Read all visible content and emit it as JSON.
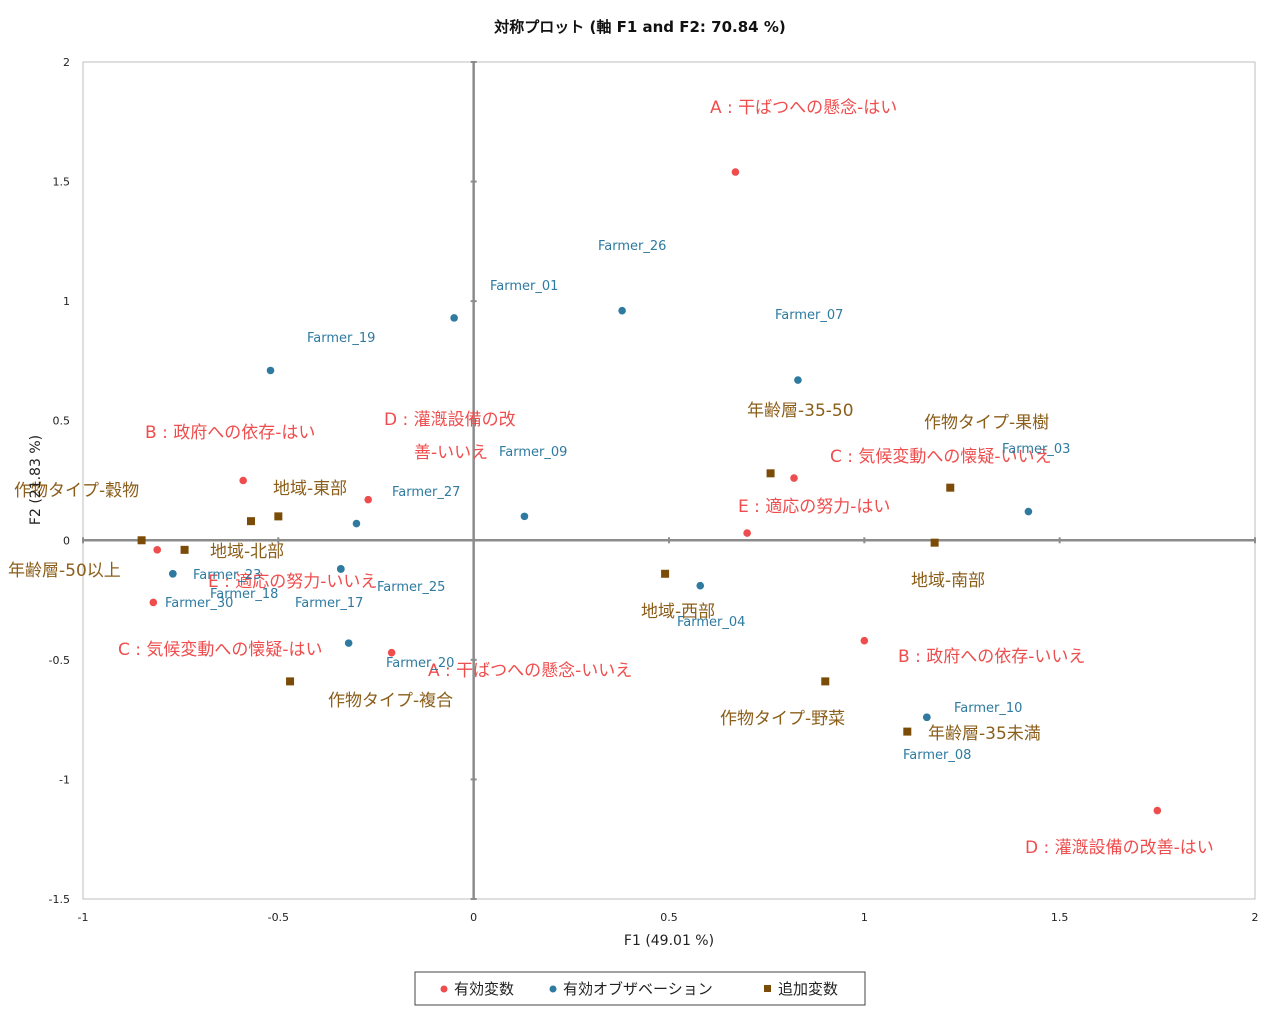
{
  "chart_data": {
    "type": "scatter",
    "title": "対称プロット (軸 F1 and F2: 70.84 %)",
    "xlabel": "F1 (49.01 %)",
    "ylabel": "F2 (21.83 %)",
    "xlim": [
      -1,
      2
    ],
    "ylim": [
      -1.5,
      2
    ],
    "xticks": [
      -1,
      -0.5,
      0,
      0.5,
      1,
      1.5,
      2
    ],
    "yticks": [
      -1.5,
      -1,
      -0.5,
      0,
      0.5,
      1,
      1.5,
      2
    ],
    "grid": false,
    "legend_position": "bottom",
    "colors": {
      "active_vars": "#ef4d4d",
      "observations": "#2e7aa0",
      "supplementary": "#7a4c08"
    },
    "series": [
      {
        "name": "有効変数",
        "marker": "circle",
        "points": [
          {
            "label": "A : 干ばつへの懸念-はい",
            "x": 0.67,
            "y": 1.54
          },
          {
            "label": "B : 政府への依存-はい",
            "x": -0.59,
            "y": 0.25
          },
          {
            "label": "D : 灌漑設備の改善-いいえ",
            "x": -0.27,
            "y": 0.17
          },
          {
            "label": "C : 気候変動への懐疑-いいえ",
            "x": 0.82,
            "y": 0.26
          },
          {
            "label": "E : 適応の努力-はい",
            "x": 0.7,
            "y": 0.03
          },
          {
            "label": "E : 適応の努力-いいえ",
            "x": -0.81,
            "y": -0.04
          },
          {
            "label": "C : 気候変動への懐疑-はい",
            "x": -0.82,
            "y": -0.26
          },
          {
            "label": "A : 干ばつへの懸念-いいえ",
            "x": -0.21,
            "y": -0.47
          },
          {
            "label": "B : 政府への依存-いいえ",
            "x": 1.0,
            "y": -0.42
          },
          {
            "label": "D : 灌漑設備の改善-はい",
            "x": 1.75,
            "y": -1.13
          }
        ]
      },
      {
        "name": "有効オブザベーション",
        "marker": "circle",
        "points": [
          {
            "label": "Farmer_01",
            "x": -0.05,
            "y": 0.93
          },
          {
            "label": "Farmer_26",
            "x": 0.38,
            "y": 0.96
          },
          {
            "label": "Farmer_19",
            "x": -0.52,
            "y": 0.71
          },
          {
            "label": "Farmer_07",
            "x": 0.83,
            "y": 0.67
          },
          {
            "label": "Farmer_09",
            "x": 0.13,
            "y": 0.1
          },
          {
            "label": "Farmer_27",
            "x": -0.3,
            "y": 0.07
          },
          {
            "label": "Farmer_03",
            "x": 1.42,
            "y": 0.12
          },
          {
            "label": "Farmer_23",
            "x": -0.77,
            "y": -0.14
          },
          {
            "label": "Farmer_30",
            "x": -0.77,
            "y": -0.14
          },
          {
            "label": "Farmer_18",
            "x": -0.34,
            "y": -0.12
          },
          {
            "label": "Farmer_17",
            "x": -0.34,
            "y": -0.12
          },
          {
            "label": "Farmer_25",
            "x": -0.34,
            "y": -0.12
          },
          {
            "label": "Farmer_04",
            "x": 0.58,
            "y": -0.19
          },
          {
            "label": "Farmer_20",
            "x": -0.32,
            "y": -0.43
          },
          {
            "label": "Farmer_10",
            "x": 1.16,
            "y": -0.74
          },
          {
            "label": "Farmer_08",
            "x": 1.16,
            "y": -0.74
          }
        ]
      },
      {
        "name": "追加変数",
        "marker": "square",
        "points": [
          {
            "label": "作物タイプ-穀物",
            "x": -0.85,
            "y": 0.0
          },
          {
            "label": "地域-東部",
            "x": -0.5,
            "y": 0.1
          },
          {
            "label": "年齢層-50以上",
            "x": -0.57,
            "y": 0.08
          },
          {
            "label": "地域-北部",
            "x": -0.74,
            "y": -0.04
          },
          {
            "label": "年齢層-35-50",
            "x": 0.76,
            "y": 0.28
          },
          {
            "label": "作物タイプ-果樹",
            "x": 1.22,
            "y": 0.22
          },
          {
            "label": "地域-南部",
            "x": 1.18,
            "y": -0.01
          },
          {
            "label": "地域-西部",
            "x": 0.49,
            "y": -0.14
          },
          {
            "label": "作物タイプ-複合",
            "x": -0.47,
            "y": -0.59
          },
          {
            "label": "作物タイプ-野菜",
            "x": 0.9,
            "y": -0.59
          },
          {
            "label": "年齢層-35未満",
            "x": 1.11,
            "y": -0.8
          }
        ]
      }
    ]
  }
}
